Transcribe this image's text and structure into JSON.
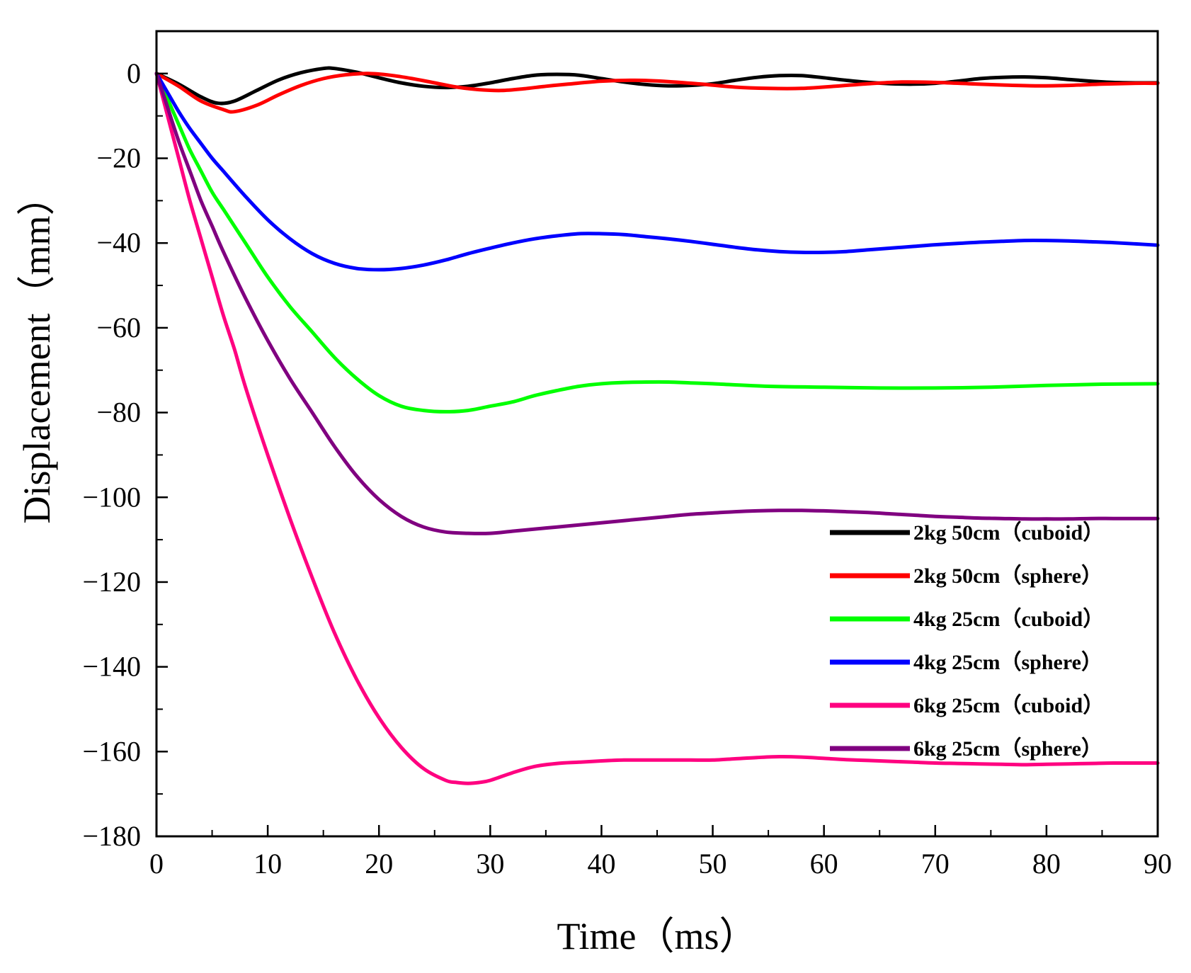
{
  "chart_data": {
    "type": "line",
    "title": "",
    "xlabel": "Time（ms）",
    "ylabel": "Displacement（mm）",
    "xlim": [
      0,
      90
    ],
    "ylim": [
      -180,
      10
    ],
    "xticks": [
      0,
      10,
      20,
      30,
      40,
      50,
      60,
      70,
      80,
      90
    ],
    "xtick_labels": [
      "0",
      "10",
      "20",
      "30",
      "40",
      "50",
      "60",
      "70",
      "80",
      "90"
    ],
    "yticks": [
      0,
      -20,
      -40,
      -60,
      -80,
      -100,
      -120,
      -140,
      -160,
      -180
    ],
    "ytick_labels": [
      "0",
      "−20",
      "−40",
      "−60",
      "−80",
      "−100",
      "−120",
      "−140",
      "−160",
      "−180"
    ],
    "grid": false,
    "legend_position": "right",
    "series": [
      {
        "name": "2kg 50cm（cuboid）",
        "color": "#000000",
        "x": [
          0,
          2,
          4,
          5.5,
          7,
          9,
          11,
          13,
          15,
          16,
          18,
          20,
          22,
          24,
          26,
          28,
          30,
          32,
          34,
          36,
          38,
          40,
          42,
          44,
          46,
          48,
          50,
          52,
          54,
          56,
          58,
          60,
          62,
          64,
          66,
          68,
          70,
          72,
          74,
          76,
          78,
          80,
          82,
          84,
          86,
          88,
          90
        ],
        "y": [
          0,
          -2.5,
          -5.5,
          -7,
          -6.5,
          -4,
          -1.5,
          0.2,
          1.2,
          1.2,
          0.3,
          -1,
          -2.2,
          -3,
          -3.3,
          -3,
          -2.2,
          -1.2,
          -0.4,
          -0.2,
          -0.4,
          -1.2,
          -2,
          -2.6,
          -2.9,
          -2.8,
          -2.4,
          -1.6,
          -0.9,
          -0.5,
          -0.5,
          -1,
          -1.6,
          -2.1,
          -2.4,
          -2.5,
          -2.3,
          -1.8,
          -1.2,
          -0.9,
          -0.8,
          -1,
          -1.4,
          -1.8,
          -2.1,
          -2.2,
          -2.2
        ]
      },
      {
        "name": "2kg 50cm（sphere）",
        "color": "#ff0000",
        "x": [
          0,
          2,
          4,
          6,
          7,
          9,
          11,
          13,
          15,
          17,
          19,
          21,
          23,
          25,
          27,
          29,
          31,
          33,
          35,
          37,
          40,
          43,
          46,
          49,
          52,
          55,
          58,
          61,
          64,
          67,
          70,
          73,
          76,
          79,
          82,
          85,
          88,
          90
        ],
        "y": [
          0,
          -3,
          -6.5,
          -8.5,
          -9,
          -7.5,
          -5,
          -2.8,
          -1.2,
          -0.3,
          0,
          -0.4,
          -1.2,
          -2.2,
          -3.2,
          -3.8,
          -4,
          -3.6,
          -3,
          -2.5,
          -1.8,
          -1.6,
          -1.9,
          -2.5,
          -3.2,
          -3.5,
          -3.5,
          -3,
          -2.4,
          -2,
          -2.1,
          -2.4,
          -2.7,
          -2.9,
          -2.8,
          -2.5,
          -2.3,
          -2.3
        ]
      },
      {
        "name": "4kg 25cm（cuboid）",
        "color": "#00ff00",
        "x": [
          0,
          1,
          2,
          3,
          4,
          5,
          6,
          8,
          10,
          12,
          14,
          16,
          18,
          20,
          22,
          24,
          26,
          28,
          30,
          32,
          34,
          36,
          38,
          40,
          42,
          44,
          46,
          48,
          50,
          55,
          60,
          65,
          70,
          75,
          80,
          85,
          90
        ],
        "y": [
          0,
          -6,
          -12,
          -18,
          -23,
          -28,
          -32,
          -40,
          -48,
          -55,
          -61,
          -67,
          -72,
          -76,
          -78.5,
          -79.5,
          -79.8,
          -79.5,
          -78.5,
          -77.5,
          -76,
          -74.8,
          -73.8,
          -73.2,
          -72.9,
          -72.8,
          -72.8,
          -73,
          -73.2,
          -73.8,
          -74,
          -74.2,
          -74.2,
          -74,
          -73.6,
          -73.3,
          -73.2
        ]
      },
      {
        "name": "4kg 25cm（sphere）",
        "color": "#0000ff",
        "x": [
          0,
          1,
          2,
          3,
          4,
          5,
          6,
          8,
          10,
          12,
          14,
          16,
          18,
          20,
          22,
          24,
          26,
          28,
          30,
          32,
          34,
          36,
          38,
          40,
          42,
          44,
          46,
          48,
          50,
          52,
          54,
          56,
          58,
          60,
          62,
          64,
          66,
          68,
          70,
          72,
          74,
          76,
          78,
          80,
          82,
          84,
          86,
          88,
          90
        ],
        "y": [
          0,
          -4.5,
          -9,
          -13,
          -16.5,
          -20,
          -23,
          -29,
          -34.5,
          -39,
          -42.5,
          -44.8,
          -46,
          -46.3,
          -46,
          -45.2,
          -44,
          -42.5,
          -41.2,
          -40,
          -39,
          -38.3,
          -37.8,
          -37.8,
          -38,
          -38.5,
          -39,
          -39.6,
          -40.3,
          -41,
          -41.6,
          -42,
          -42.2,
          -42.2,
          -42,
          -41.6,
          -41.2,
          -40.8,
          -40.4,
          -40.1,
          -39.8,
          -39.6,
          -39.4,
          -39.4,
          -39.5,
          -39.7,
          -39.9,
          -40.2,
          -40.5
        ]
      },
      {
        "name": "6kg 25cm（cuboid）",
        "color": "#ff0080",
        "x": [
          0,
          1,
          2,
          3,
          4,
          5,
          6,
          7,
          8,
          10,
          12,
          14,
          16,
          18,
          20,
          22,
          24,
          26,
          27,
          28,
          29,
          30,
          32,
          34,
          36,
          38,
          40,
          42,
          44,
          46,
          48,
          50,
          52,
          54,
          56,
          58,
          60,
          62,
          64,
          66,
          68,
          70,
          72,
          74,
          76,
          78,
          80,
          82,
          84,
          86,
          88,
          90
        ],
        "y": [
          0,
          -10,
          -20,
          -30,
          -39,
          -48,
          -57,
          -65,
          -74,
          -90,
          -105,
          -119,
          -132,
          -143,
          -152,
          -159,
          -164,
          -166.8,
          -167.3,
          -167.5,
          -167.3,
          -166.8,
          -165,
          -163.5,
          -162.8,
          -162.5,
          -162.2,
          -162,
          -162,
          -162,
          -162,
          -162,
          -161.7,
          -161.4,
          -161.2,
          -161.3,
          -161.6,
          -161.9,
          -162.1,
          -162.3,
          -162.5,
          -162.7,
          -162.8,
          -162.9,
          -163,
          -163.1,
          -163,
          -162.9,
          -162.8,
          -162.7,
          -162.7,
          -162.7
        ]
      },
      {
        "name": "6kg 25cm（sphere）",
        "color": "#800080",
        "x": [
          0,
          1,
          2,
          3,
          4,
          5,
          6,
          8,
          10,
          12,
          14,
          16,
          18,
          20,
          22,
          24,
          26,
          28,
          30,
          32,
          34,
          36,
          38,
          40,
          42,
          44,
          46,
          48,
          50,
          52,
          54,
          56,
          58,
          60,
          62,
          64,
          66,
          68,
          70,
          72,
          74,
          76,
          78,
          80,
          82,
          84,
          86,
          88,
          90
        ],
        "y": [
          0,
          -8,
          -16,
          -23,
          -30,
          -36,
          -42,
          -53,
          -63,
          -72,
          -80,
          -88,
          -95,
          -100.5,
          -104.5,
          -107,
          -108.2,
          -108.5,
          -108.5,
          -108,
          -107.5,
          -107,
          -106.5,
          -106,
          -105.5,
          -105,
          -104.5,
          -104,
          -103.7,
          -103.4,
          -103.2,
          -103.1,
          -103.1,
          -103.2,
          -103.4,
          -103.6,
          -103.9,
          -104.2,
          -104.5,
          -104.7,
          -104.9,
          -105,
          -105.1,
          -105.1,
          -105.1,
          -105,
          -105,
          -105,
          -105
        ]
      }
    ]
  }
}
